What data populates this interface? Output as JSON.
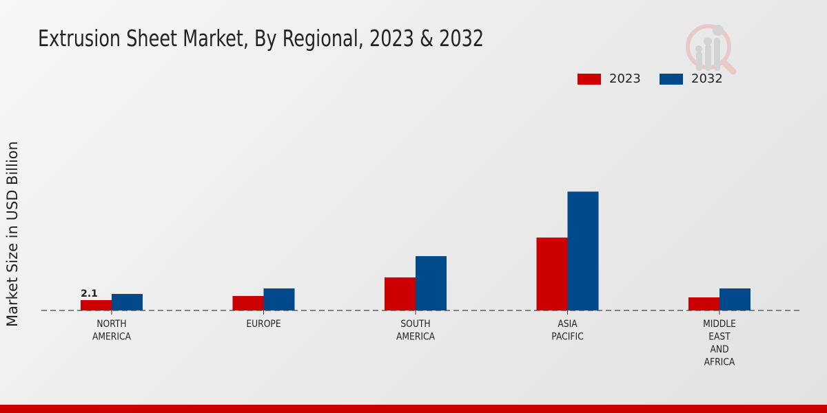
{
  "chart_data": {
    "type": "bar",
    "title": "Extrusion Sheet Market, By Regional, 2023 & 2032",
    "xlabel": "",
    "ylabel": "Market Size in USD Billion",
    "ylim": [
      0,
      45
    ],
    "grid": false,
    "legend_placement": "top-right",
    "categories": [
      [
        "NORTH",
        "AMERICA"
      ],
      [
        "EUROPE"
      ],
      [
        "SOUTH",
        "AMERICA"
      ],
      [
        "ASIA",
        "PACIFIC"
      ],
      [
        "MIDDLE",
        "EAST",
        "AND",
        "AFRICA"
      ]
    ],
    "series": [
      {
        "name": "2023",
        "color": "#cc0000",
        "values": [
          2.1,
          2.94,
          6.72,
          14.84,
          2.66
        ]
      },
      {
        "name": "2032",
        "color": "#004a8c",
        "values": [
          3.36,
          4.48,
          11.06,
          24.2,
          4.48
        ]
      }
    ],
    "annotations": [
      {
        "series": 0,
        "index": 0,
        "text": "2.1"
      }
    ]
  },
  "colors": {
    "bottom_bar": "#cc0000"
  }
}
